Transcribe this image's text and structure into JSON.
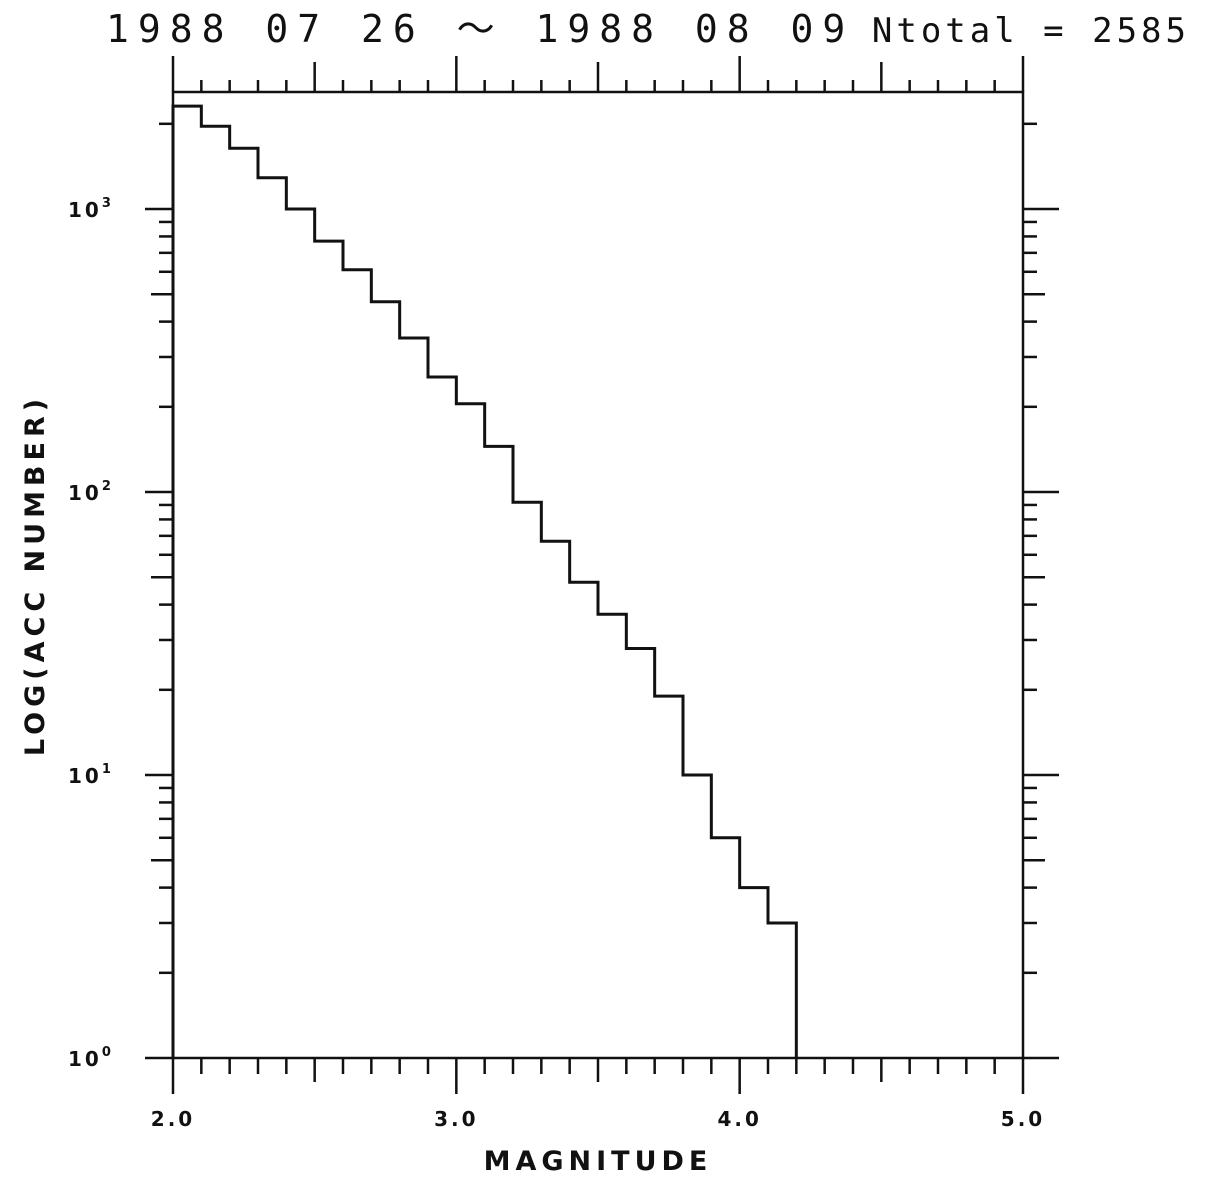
{
  "chart_data": {
    "type": "line",
    "style": "step",
    "title": "1988 07 26 ～ 1988 08 09",
    "annotation": "Ntotal = 2585",
    "xlabel": "MAGNITUDE",
    "ylabel": "LOG(ACC NUMBER)",
    "xlim": [
      2.0,
      5.0
    ],
    "ylim": [
      1,
      2585
    ],
    "yscale": "log",
    "grid": false,
    "x_tick_labels": [
      "2.0",
      "3.0",
      "4.0",
      "5.0"
    ],
    "y_tick_labels": [
      {
        "base": "10",
        "exp": "0"
      },
      {
        "base": "10",
        "exp": "1"
      },
      {
        "base": "10",
        "exp": "2"
      },
      {
        "base": "10",
        "exp": "3"
      }
    ],
    "x": [
      2.0,
      2.1,
      2.2,
      2.3,
      2.4,
      2.5,
      2.6,
      2.7,
      2.8,
      2.9,
      3.0,
      3.1,
      3.2,
      3.3,
      3.4,
      3.5,
      3.6,
      3.7,
      3.8,
      3.9,
      4.0,
      4.1
    ],
    "values": [
      2310,
      1960,
      1640,
      1290,
      1000,
      770,
      610,
      470,
      350,
      255,
      205,
      145,
      92,
      67,
      48,
      37,
      28,
      19,
      10,
      6,
      4,
      3
    ],
    "color": "#111111"
  }
}
